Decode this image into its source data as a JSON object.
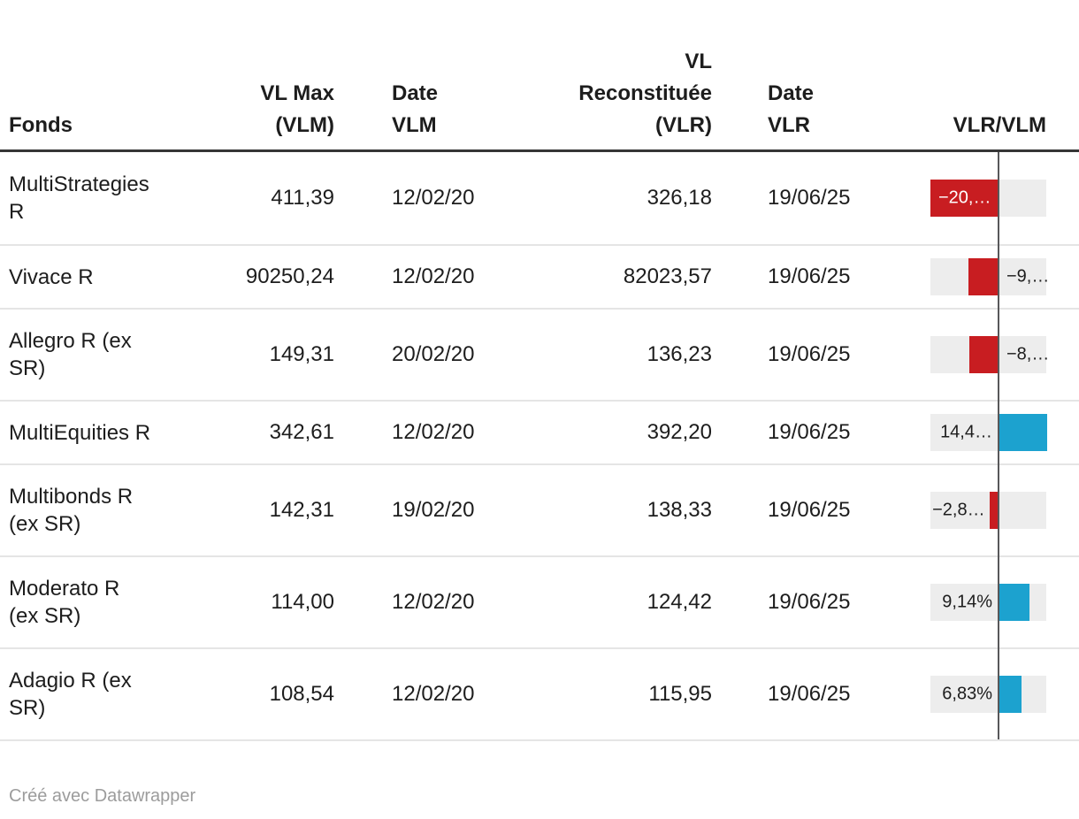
{
  "footer": {
    "credit": "Créé avec Datawrapper"
  },
  "colors": {
    "negative_bar": "#c81d21",
    "positive_bar": "#1ca2cf",
    "bar_track": "#ededed",
    "zero_axis": "#58585a",
    "header_rule": "#363636",
    "row_separator": "#e5e5e5",
    "text": "#1d1d1d",
    "credit_text": "#9c9c9c",
    "inside_bar_label": "#ffffff"
  },
  "chart_data": {
    "type": "table",
    "title": "",
    "columns": [
      "Fonds",
      "VL Max\n(VLM)",
      "Date\nVLM",
      "VL\nReconstituée\n(VLR)",
      "Date\nVLR",
      "VLR/VLM"
    ],
    "bar_column": {
      "name": "VLR/VLM",
      "negative_color": "#c81d21",
      "positive_color": "#1ca2cf",
      "range_pct": [
        -20.71,
        14.47
      ],
      "zero_axis": true,
      "legend": "red = negative, blue = positive"
    },
    "rows": [
      {
        "fonds": "MultiStrategies\nR",
        "vlm": "411,39",
        "date_vlm": "12/02/20",
        "vlr": "326,18",
        "date_vlr": "19/06/25",
        "ratio_pct": -20.71,
        "ratio_label": "−20,…",
        "label_placement": "inside-bar"
      },
      {
        "fonds": "Vivace R",
        "vlm": "90250,24",
        "date_vlm": "12/02/20",
        "vlr": "82023,57",
        "date_vlr": "19/06/25",
        "ratio_pct": -9.12,
        "ratio_label": "−9,…",
        "label_placement": "right-of-axis"
      },
      {
        "fonds": "Allegro R (ex\nSR)",
        "vlm": "149,31",
        "date_vlm": "20/02/20",
        "vlr": "136,23",
        "date_vlr": "19/06/25",
        "ratio_pct": -8.76,
        "ratio_label": "−8,…",
        "label_placement": "right-of-axis"
      },
      {
        "fonds": "MultiEquities R",
        "vlm": "342,61",
        "date_vlm": "12/02/20",
        "vlr": "392,20",
        "date_vlr": "19/06/25",
        "ratio_pct": 14.47,
        "ratio_label": "14,4…",
        "label_placement": "left-of-axis"
      },
      {
        "fonds": "Multibonds R\n(ex SR)",
        "vlm": "142,31",
        "date_vlm": "19/02/20",
        "vlr": "138,33",
        "date_vlr": "19/06/25",
        "ratio_pct": -2.8,
        "ratio_label": "−2,8…",
        "label_placement": "left-of-bar"
      },
      {
        "fonds": "Moderato R\n(ex SR)",
        "vlm": "114,00",
        "date_vlm": "12/02/20",
        "vlr": "124,42",
        "date_vlr": "19/06/25",
        "ratio_pct": 9.14,
        "ratio_label": "9,14%",
        "label_placement": "left-of-axis"
      },
      {
        "fonds": "Adagio R (ex\nSR)",
        "vlm": "108,54",
        "date_vlm": "12/02/20",
        "vlr": "115,95",
        "date_vlr": "19/06/25",
        "ratio_pct": 6.83,
        "ratio_label": "6,83%",
        "label_placement": "left-of-axis"
      }
    ]
  }
}
